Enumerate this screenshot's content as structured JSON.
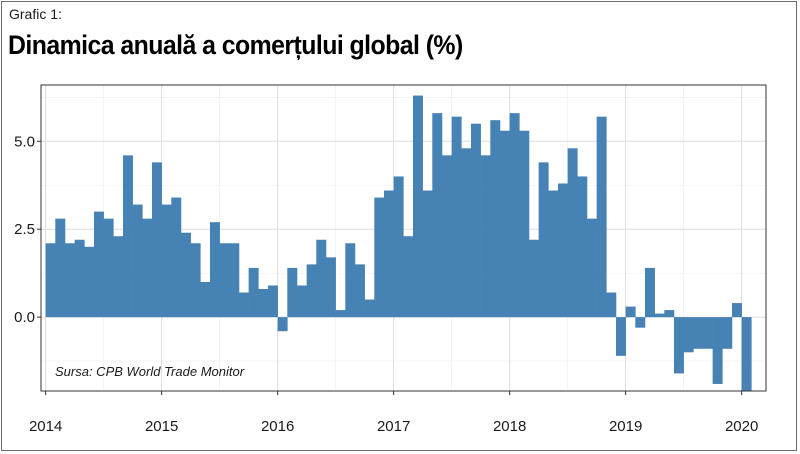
{
  "header": {
    "label": "Grafic 1:",
    "title": "Dinamica anuală a comerțului global (%)"
  },
  "chart_data": {
    "type": "bar",
    "title": "Dinamica anuală a comerțului global (%)",
    "xlabel": "",
    "ylabel": "",
    "x_ticks": [
      "2014",
      "2015",
      "2016",
      "2017",
      "2018",
      "2019",
      "2020"
    ],
    "y_ticks": [
      "0.0",
      "2.5",
      "5.0"
    ],
    "y_tick_values": [
      0,
      2.5,
      5.0
    ],
    "ylim": [
      -2.1,
      6.6
    ],
    "xlim": [
      2013.96,
      2020.21
    ],
    "bar_color": "#4682b4",
    "grid": true,
    "source": "Sursa: CPB World Trade Monitor",
    "series": [
      {
        "start": "2014-01",
        "frequency": "monthly",
        "values": [
          2.1,
          2.8,
          2.1,
          2.2,
          2.0,
          3.0,
          2.8,
          2.3,
          4.6,
          3.2,
          2.8,
          4.4,
          3.2,
          3.4,
          2.4,
          2.1,
          1.0,
          2.7,
          2.1,
          2.1,
          0.7,
          1.4,
          0.8,
          0.9,
          -0.4,
          1.4,
          0.9,
          1.5,
          2.2,
          1.7,
          0.2,
          2.1,
          1.5,
          0.5,
          3.4,
          3.6,
          4.0,
          2.3,
          6.3,
          3.6,
          5.8,
          4.6,
          5.7,
          4.8,
          5.5,
          4.6,
          5.6,
          5.3,
          5.8,
          5.3,
          2.2,
          4.4,
          3.6,
          3.8,
          4.8,
          4.0,
          2.8,
          5.7,
          0.7,
          -1.1,
          0.3,
          -0.3,
          1.4,
          0.1,
          0.2,
          -1.6,
          -1.0,
          -0.9,
          -0.9,
          -1.9,
          -0.9,
          0.4,
          -2.1
        ]
      }
    ]
  }
}
